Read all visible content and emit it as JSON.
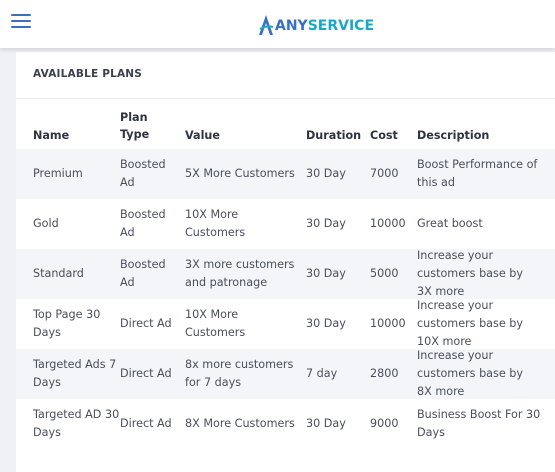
{
  "header": {
    "logo_any": "ANY",
    "logo_service": "SERVICE"
  },
  "plans": {
    "title": "AVAILABLE PLANS",
    "columns": {
      "name": "Name",
      "plan_type_line1": "Plan",
      "plan_type_line2": "Type",
      "value": "Value",
      "duration": "Duration",
      "cost": "Cost",
      "description": "Description"
    },
    "rows": [
      {
        "name": "Premium",
        "type": "Boosted Ad",
        "value": "5X More Customers",
        "duration": "30 Day",
        "cost": "7000",
        "description": "Boost Performance of this ad"
      },
      {
        "name": "Gold",
        "type": "Boosted Ad",
        "value": "10X More Customers",
        "duration": "30 Day",
        "cost": "10000",
        "description": "Great boost"
      },
      {
        "name": "Standard",
        "type": "Boosted Ad",
        "value": "3X more customers and patronage",
        "duration": "30 Day",
        "cost": "5000",
        "description": "Increase your customers base by 3X more"
      },
      {
        "name": "Top Page 30 Days",
        "type": "Direct Ad",
        "value": "10X More Customers",
        "duration": "30 Day",
        "cost": "10000",
        "description": "Increase your customers base by 10X more"
      },
      {
        "name": "Targeted Ads 7 Days",
        "type": "Direct Ad",
        "value": "8x more customers for 7 days",
        "duration": "7 day",
        "cost": "2800",
        "description": "Increase your customers base by 8X more"
      },
      {
        "name": "Targeted AD 30 Days",
        "type": "Direct Ad",
        "value": "8X More Customers",
        "duration": "30 Day",
        "cost": "9000",
        "description": "Business Boost For 30 Days"
      }
    ]
  },
  "colors": {
    "brand_blue": "#3b6fc2",
    "brand_cyan": "#1aa8c9",
    "row_shade": "#f4f5f8"
  }
}
